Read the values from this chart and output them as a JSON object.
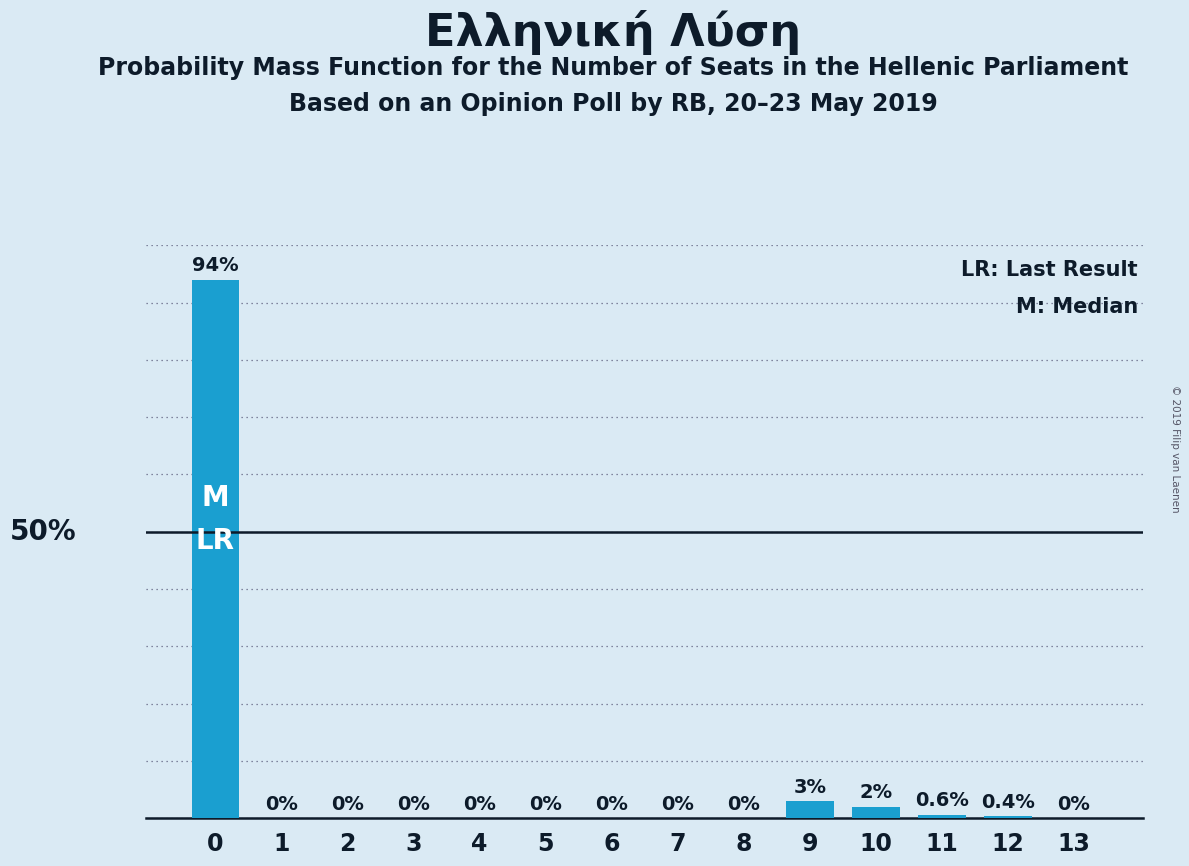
{
  "title_main": "Ελληνική Λύση",
  "title_sub1": "Probability Mass Function for the Number of Seats in the Hellenic Parliament",
  "title_sub2": "Based on an Opinion Poll by RB, 20–23 May 2019",
  "categories": [
    0,
    1,
    2,
    3,
    4,
    5,
    6,
    7,
    8,
    9,
    10,
    11,
    12,
    13
  ],
  "values": [
    94,
    0,
    0,
    0,
    0,
    0,
    0,
    0,
    0,
    3,
    2,
    0.6,
    0.4,
    0
  ],
  "bar_color": "#1a9fd0",
  "background_color": "#daeaf4",
  "y_max": 100,
  "y_ticks": [
    0,
    10,
    20,
    30,
    40,
    50,
    60,
    70,
    80,
    90,
    100
  ],
  "fifty_percent_line": 50,
  "median_seat": 0,
  "last_result_seat": 0,
  "legend_lr": "LR: Last Result",
  "legend_m": "M: Median",
  "copyright": "© 2019 Filip van Laenen",
  "bar_labels": [
    "94%",
    "0%",
    "0%",
    "0%",
    "0%",
    "0%",
    "0%",
    "0%",
    "0%",
    "3%",
    "2%",
    "0.6%",
    "0.4%",
    "0%"
  ],
  "title_fontsize": 32,
  "sub_fontsize": 17,
  "label_fontsize": 14,
  "tick_fontsize": 17
}
